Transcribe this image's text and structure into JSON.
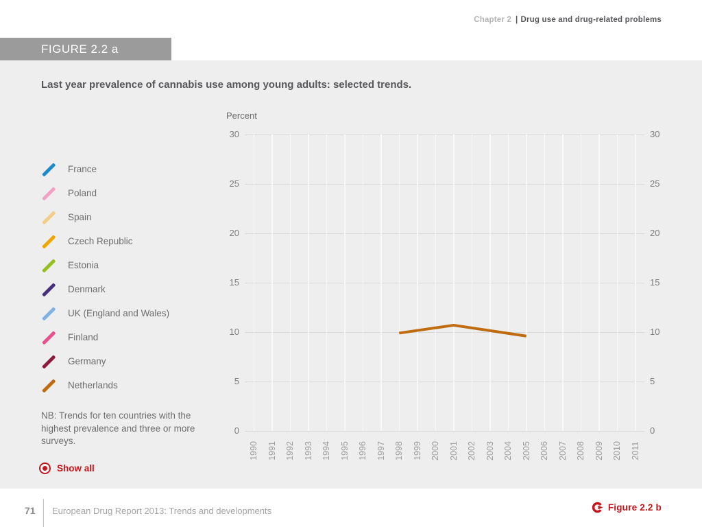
{
  "page": {
    "header": {
      "chapter": "Chapter 2",
      "divider": "|",
      "section": "Drug use and drug-related problems"
    },
    "figure_banner": "FIGURE 2.2 a",
    "figure_title": "Last year prevalence of cannabis use among young adults: selected trends.",
    "note": "NB: Trends for ten countries with the highest prevalence and three or more surveys.",
    "show_all_label": "Show all",
    "footer": {
      "page_number": "71",
      "report_title": "European Drug Report 2013: Trends and developments",
      "figure_link_label": "Figure 2.2 b"
    }
  },
  "colors": {
    "accent_red": "#c4161c",
    "banner_gray": "#9b9b9b",
    "content_bg": "#eeeeee",
    "grid_line": "#d9d9d9",
    "vertical_line": "#f8f8f8",
    "dark_text": "#57575a"
  },
  "chart_data": {
    "type": "line",
    "title": "Last year prevalence of cannabis use among young adults: selected trends.",
    "ylabel": "Percent",
    "xlabel": "",
    "ylim": [
      0,
      30
    ],
    "yticks": [
      0,
      5,
      10,
      15,
      20,
      25,
      30
    ],
    "x_categories": [
      "1990",
      "1991",
      "1992",
      "1993",
      "1994",
      "1995",
      "1996",
      "1997",
      "1998",
      "1999",
      "2000",
      "2001",
      "2002",
      "2003",
      "2004",
      "2005",
      "2006",
      "2007",
      "2008",
      "2009",
      "2010",
      "2011"
    ],
    "grid": {
      "horizontal_gray": true,
      "vertical_white_year_columns": true
    },
    "legend_position": "left",
    "legend_items": [
      {
        "label": "France",
        "color": "#1e8bcd"
      },
      {
        "label": "Poland",
        "color": "#f2a3c5"
      },
      {
        "label": "Spain",
        "color": "#f2cf88"
      },
      {
        "label": "Czech Republic",
        "color": "#f0a500"
      },
      {
        "label": "Estonia",
        "color": "#95c11f"
      },
      {
        "label": "Denmark",
        "color": "#46307e"
      },
      {
        "label": "UK (England and Wales)",
        "color": "#7fb2e0"
      },
      {
        "label": "Finland",
        "color": "#e9508e"
      },
      {
        "label": "Germany",
        "color": "#8d1b3d"
      },
      {
        "label": "Netherlands",
        "color": "#bf6c10"
      }
    ],
    "series": [
      {
        "name": "Netherlands",
        "color": "#bf6c10",
        "points": [
          [
            1998,
            9.9
          ],
          [
            2001,
            10.7
          ],
          [
            2005,
            9.6
          ]
        ]
      }
    ]
  }
}
